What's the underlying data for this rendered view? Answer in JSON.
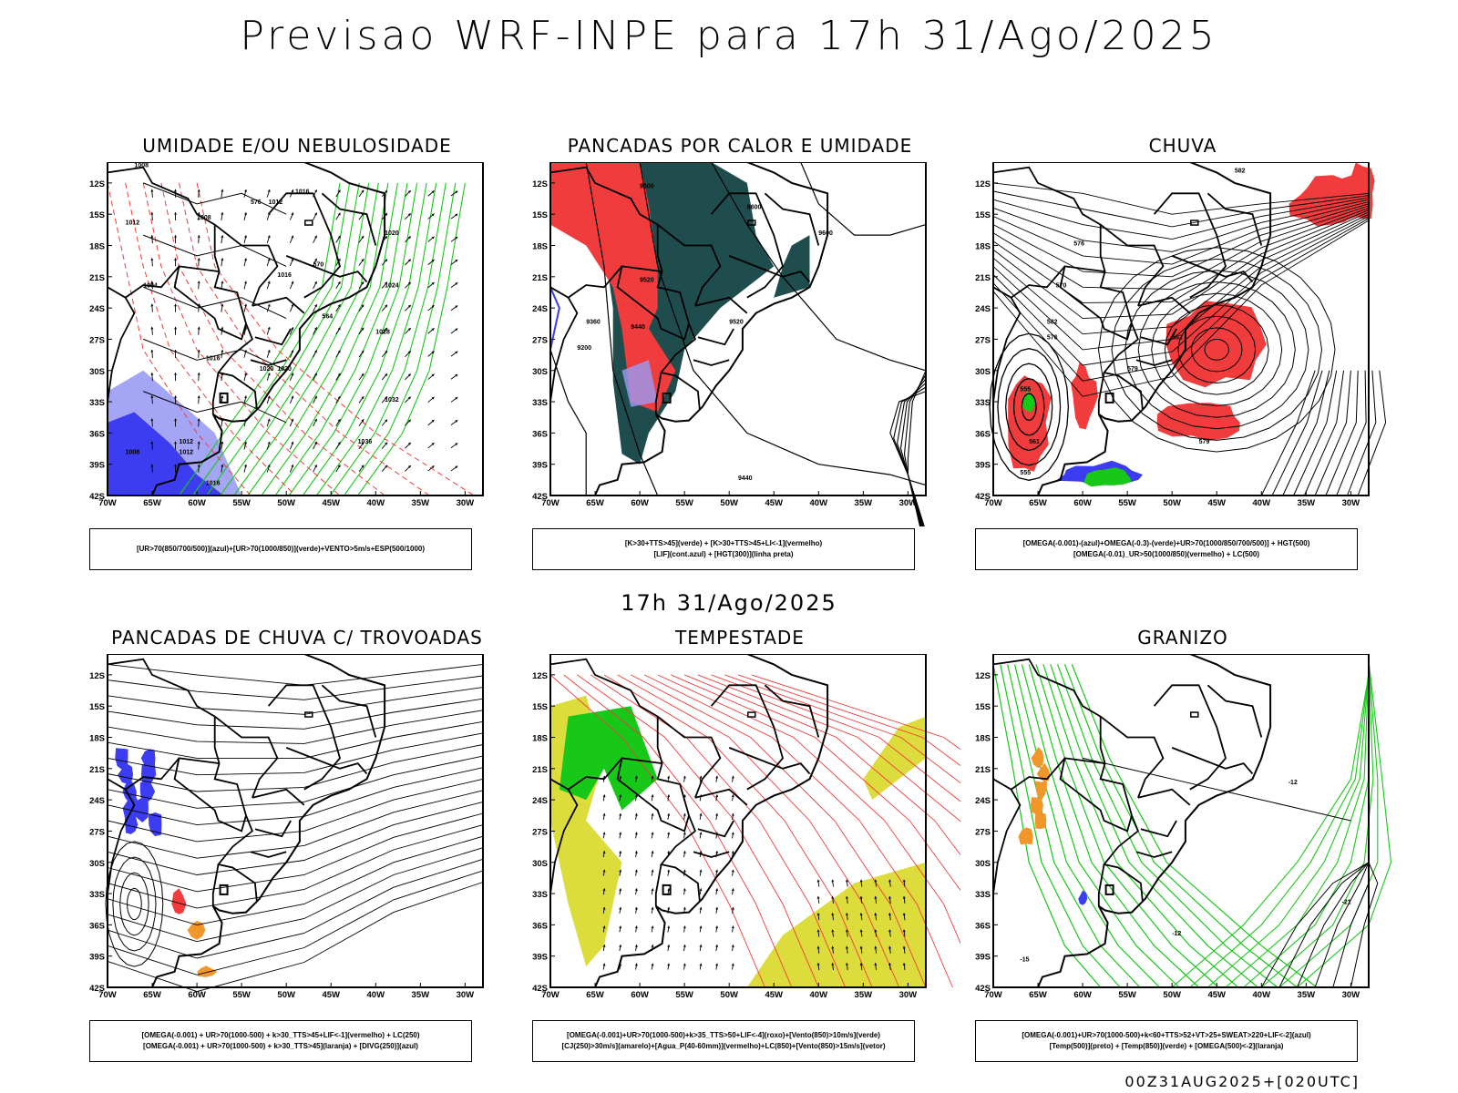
{
  "header": {
    "title": "Previsao WRF-INPE  para 17h 31/Ago/2025",
    "mid_title": "17h 31/Ago/2025",
    "footer": "00Z31AUG2025+[020UTC]"
  },
  "axes": {
    "lat_labels": [
      "12S",
      "15S",
      "18S",
      "21S",
      "24S",
      "27S",
      "30S",
      "33S",
      "36S",
      "39S",
      "42S"
    ],
    "lon_labels": [
      "70W",
      "65W",
      "60W",
      "55W",
      "50W",
      "45W",
      "40W",
      "35W",
      "30W"
    ]
  },
  "colors": {
    "red": "#f03c3c",
    "green": "#18c818",
    "blue": "#3c3cf0",
    "lightblue": "#9b9bf5",
    "darkteal": "#1f4d4d",
    "yellow": "#dcdc3c",
    "orange": "#f0962a"
  },
  "panels": [
    {
      "title": "UMIDADE E/OU NEBULOSIDADE",
      "legend": [
        "[UR>70(850/700/500)](azul)+[UR>70(1000/850)](verde)+VENTO>5m/s+ESP(500/1000)"
      ],
      "labels": [
        "1008",
        "1008",
        "1012",
        "1012",
        "1016",
        "1016",
        "1020",
        "1024",
        "1028",
        "1032",
        "1036",
        "1012",
        "1016",
        "1020",
        "1020",
        "1008",
        "1004",
        "1012",
        "1016",
        "576",
        "570",
        "564"
      ]
    },
    {
      "title": "PANCADAS POR CALOR E UMIDADE",
      "legend": [
        "[K>30+TTS>45](verde) + [K>30+TTS>45+LI<-1](vermelho)",
        "[LIF](cont.azul) + [HGT(300)](linha preta)"
      ],
      "labels": [
        "9600",
        "9600",
        "9600",
        "9520",
        "9520",
        "9440",
        "9360",
        "9200",
        "9440"
      ]
    },
    {
      "title": "CHUVA",
      "legend": [
        "[OMEGA(-0.001)-(azul)+OMEGA(-0.3)-(verde)+UR>70(1000/850/700/500)] + HGT(500)",
        "[OMEGA(-0.01)_UR>50(1000/850)(vermelho) + LC(500)"
      ],
      "labels": [
        "582",
        "576",
        "570",
        "582",
        "576",
        "561",
        "555",
        "579",
        "579",
        "582",
        "555"
      ]
    },
    {
      "title": "PANCADAS DE CHUVA C/ TROVOADAS",
      "legend": [
        "[OMEGA(-0.001) + UR>70(1000-500) + k>30_TTS>45+LIF<-1](vermelho) + LC(250)",
        "[OMEGA(-0.001) + UR>70(1000-500) + k>30_TTS>45](laranja) + [DIVG(250)](azul)"
      ],
      "labels": []
    },
    {
      "title": "TEMPESTADE",
      "legend": [
        "[OMEGA(-0.001)+UR>70(1000-500)+k>35_TTS>50+LIF<-4](roxo)+[Vento(850)>10m/s](verde)",
        "[CJ(250)>30m/s](amarelo)+[Agua_P(40-60mm)](vermelho)+LC(850)+[Vento(850)>15m/s](vetor)"
      ],
      "labels": []
    },
    {
      "title": "GRANIZO",
      "legend": [
        "[OMEGA(-0.001)+UR>70(1000-500)+k<60+TTS>52+VT>25+SWEAT>220+LIF<-2](azul)",
        "[Temp(500)](preto) + [Temp(850)](verde) + [OMEGA(500)<-2](laranja)"
      ],
      "labels": [
        "-12",
        "-15",
        "-21",
        "-12"
      ]
    }
  ]
}
